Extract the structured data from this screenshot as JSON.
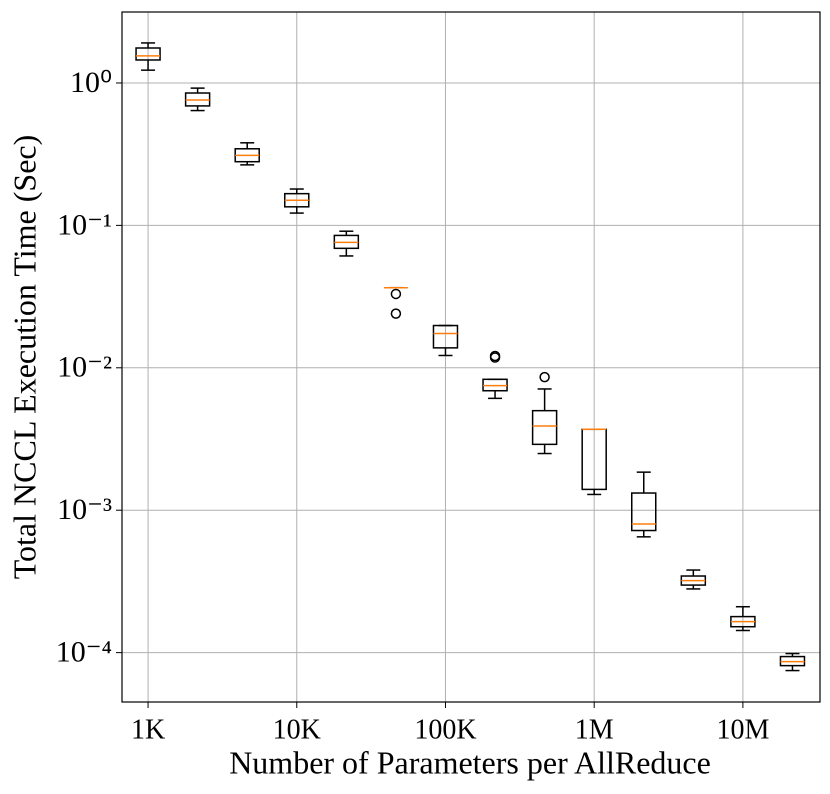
{
  "chart_data": {
    "type": "box",
    "xlabel": "Number of Parameters per AllReduce",
    "ylabel": "Total NCCL Execution Time (Sec)",
    "xscale": "log",
    "yscale": "log",
    "grid": true,
    "box_color": "#000000",
    "median_color": "#ff7f0e",
    "ytick_color": "#ff0000",
    "xlim": [
      668,
      33000000
    ],
    "ylim": [
      4.5e-05,
      3.15
    ],
    "xticks": [
      {
        "value": 1000,
        "label": "1K"
      },
      {
        "value": 10000,
        "label": "10K"
      },
      {
        "value": 100000,
        "label": "100K"
      },
      {
        "value": 1000000,
        "label": "1M"
      },
      {
        "value": 10000000,
        "label": "10M"
      }
    ],
    "yticks": [
      {
        "value": 0.0001,
        "label": "10⁻⁴"
      },
      {
        "value": 0.001,
        "label": "10⁻³"
      },
      {
        "value": 0.01,
        "label": "10⁻²"
      },
      {
        "value": 0.1,
        "label": "10⁻¹"
      },
      {
        "value": 1,
        "label": "10⁰"
      }
    ],
    "x": [
      1000,
      2154,
      4642,
      10000,
      21544,
      46416,
      100000,
      215443,
      464159,
      1000000,
      2154435,
      4641589,
      10000000,
      21544347
    ],
    "whislo": [
      1.23,
      0.64,
      0.266,
      0.122,
      0.061,
      0.0365,
      0.0122,
      0.0061,
      0.0025,
      0.00129,
      0.00065,
      0.00028,
      0.000143,
      7.48e-05
    ],
    "q1": [
      1.45,
      0.69,
      0.28,
      0.135,
      0.069,
      0.0365,
      0.0138,
      0.0069,
      0.0029,
      0.0014,
      0.00072,
      0.000298,
      0.000152,
      8.1e-05
    ],
    "median": [
      1.55,
      0.76,
      0.31,
      0.15,
      0.076,
      0.0365,
      0.0174,
      0.0075,
      0.0039,
      0.0037,
      0.0008,
      0.00032,
      0.000165,
      8.65e-05
    ],
    "q3": [
      1.76,
      0.85,
      0.345,
      0.167,
      0.085,
      0.0365,
      0.0198,
      0.0083,
      0.005,
      0.0037,
      0.00132,
      0.000345,
      0.000179,
      9.38e-05
    ],
    "whishi": [
      1.91,
      0.92,
      0.38,
      0.18,
      0.091,
      0.0365,
      0.0198,
      0.0083,
      0.0071,
      0.0037,
      0.00185,
      0.00038,
      0.00021,
      9.85e-05
    ],
    "fliers": [
      [],
      [],
      [],
      [],
      [],
      [
        0.033,
        0.024
      ],
      [],
      [
        0.0121,
        0.0118
      ],
      [
        0.0086
      ],
      [],
      [],
      [],
      [],
      []
    ]
  }
}
